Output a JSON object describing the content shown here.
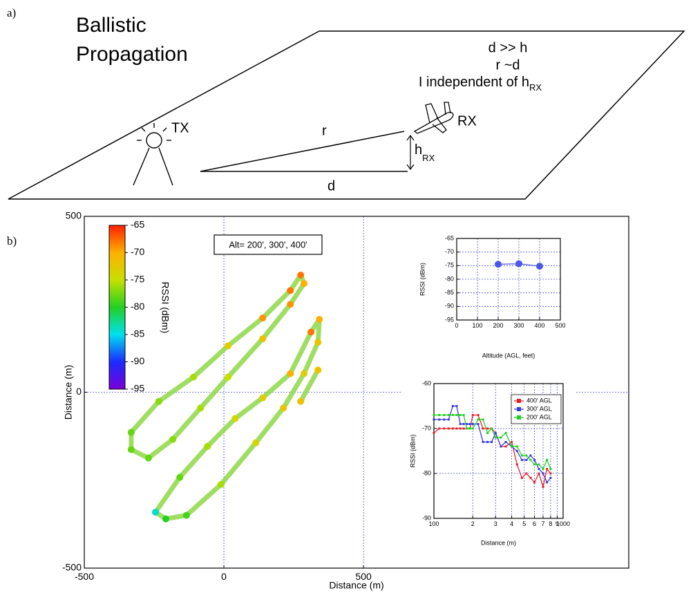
{
  "diagram": {
    "panel_label": "a)",
    "title_lines": [
      "Ballistic",
      "Propagation"
    ],
    "conditions": [
      "d >> h",
      "r ~d"
    ],
    "independence": {
      "text": "I independent of h",
      "subscript": "RX"
    },
    "tx_label": "TX",
    "rx_label": "RX",
    "r_label": "r",
    "d_label": "d",
    "height_label": {
      "text": "h",
      "subscript": "RX"
    }
  },
  "panel_b_label": "b)",
  "chart_data": [
    {
      "type": "scatter",
      "xlim": [
        -500,
        1450
      ],
      "ylim": [
        -500,
        500
      ],
      "xticks": [
        -500,
        0,
        500
      ],
      "yticks": [
        -500,
        0,
        500
      ],
      "xlabel": "Distance (m)",
      "ylabel": "Distance (m)",
      "grid": true,
      "annotation": "Alt= 200', 300', 400'",
      "colorbar": {
        "label": "RSSI (dBm)",
        "lim": [
          -95,
          -65
        ],
        "ticks": [
          -65,
          -70,
          -75,
          -80,
          -85,
          -90,
          -95
        ],
        "colormap": [
          "#7a00d8",
          "#1a2cff",
          "#00e0f0",
          "#22d022",
          "#c8e000",
          "#ffb000",
          "#ff2000"
        ]
      },
      "series": [
        {
          "name": "RSSI (dBm)",
          "color": "#8fd848",
          "x": [
            -332,
            -233,
            -109,
            15,
            139,
            238,
            275,
            287,
            238,
            139,
            15,
            -84,
            -183,
            -270,
            -332,
            -332,
            null,
            -245,
            -158,
            -59,
            40,
            139,
            238,
            312,
            342,
            337,
            287,
            213,
            114,
            -10,
            -134,
            -208,
            -245,
            null,
            337,
            275
          ],
          "y": [
            -114,
            -26,
            43,
            132,
            211,
            289,
            333,
            309,
            250,
            152,
            43,
            -45,
            -134,
            -187,
            -163,
            -114,
            null,
            -341,
            -242,
            -154,
            -75,
            -16,
            53,
            171,
            207,
            142,
            53,
            -45,
            -144,
            -262,
            -350,
            -360,
            -341,
            null,
            63,
            -26
          ],
          "values": [
            -78,
            -77,
            -76,
            -73,
            -69,
            -68,
            -68,
            -70,
            -69,
            -72,
            -75,
            -76,
            -77,
            -78,
            -78,
            -78,
            null,
            -84,
            -78,
            -76,
            -74,
            -73,
            -70,
            -68,
            -70,
            -72,
            -73,
            -72,
            -74,
            -76,
            -79,
            -80,
            -84,
            null,
            -72,
            -72
          ]
        }
      ]
    },
    {
      "type": "line",
      "xlim": [
        0,
        500
      ],
      "ylim": [
        -95,
        -65
      ],
      "xticks": [
        0,
        100,
        200,
        300,
        400,
        500
      ],
      "yticks": [
        -95,
        -90,
        -85,
        -80,
        -75,
        -70,
        -65
      ],
      "xlabel": "Altitude (AGL, feet)",
      "ylabel": "RSSI (dBm)",
      "grid": true,
      "marker": "circle",
      "x": [
        200,
        300,
        400
      ],
      "series": [
        {
          "name": "RSSI (dBm)",
          "color": "#4a57e8",
          "values": [
            -74.5,
            -74.3,
            -75.2
          ]
        }
      ]
    },
    {
      "type": "line",
      "xscale": "log",
      "xlim": [
        100,
        1000
      ],
      "ylim": [
        -90,
        -60
      ],
      "xticks": [
        100,
        {
          "value": 200,
          "label": "2"
        },
        {
          "value": 300,
          "label": "3"
        },
        {
          "value": 400,
          "label": "4"
        },
        {
          "value": 500,
          "label": "5"
        },
        {
          "value": 600,
          "label": "6"
        },
        {
          "value": 700,
          "label": "7"
        },
        {
          "value": 800,
          "label": "8"
        },
        {
          "value": 900,
          "label": "9"
        },
        1000
      ],
      "yticks": [
        -90,
        -80,
        -70,
        -60
      ],
      "xlabel": "Distance (m)",
      "ylabel": "RSSI (dBm)",
      "grid": true,
      "marker": "square",
      "legend": "upper right",
      "x": [
        100,
        110,
        120,
        130,
        140,
        150,
        160,
        170,
        180,
        190,
        200,
        220,
        240,
        260,
        280,
        300,
        330,
        360,
        400,
        440,
        480,
        520,
        560,
        600,
        650,
        700,
        750,
        800
      ],
      "series": [
        {
          "name": "400' AGL",
          "color": "#e8202a",
          "values": [
            -71,
            -70,
            -70,
            -70,
            -70,
            -70,
            -70,
            -70,
            -70,
            -70,
            -67,
            -67,
            -70,
            -70,
            -70,
            -71,
            -74,
            -74,
            -73,
            -78,
            -81,
            -80,
            -81,
            -82,
            -80,
            -83,
            -79,
            -80
          ]
        },
        {
          "name": "300' AGL",
          "color": "#3a3ae0",
          "values": [
            -68,
            -68,
            -68,
            -68,
            -65,
            -65,
            -69,
            -69,
            -69,
            -69,
            -69,
            -69,
            -73,
            -73,
            -73,
            -71,
            -74,
            -73,
            -74,
            -75,
            -77,
            -77,
            -76,
            -77,
            -79,
            -80,
            -82,
            -81
          ]
        },
        {
          "name": "200' AGL",
          "color": "#22d022",
          "values": [
            -67,
            -67,
            -67,
            -67,
            -67,
            -67,
            -67,
            -67,
            -70,
            -70,
            -70,
            -68,
            -68,
            -71,
            -70,
            -72,
            -72,
            -71,
            -74,
            -74,
            -76,
            -76,
            -77,
            -78,
            -78,
            -79,
            -77,
            -79
          ]
        }
      ]
    }
  ]
}
